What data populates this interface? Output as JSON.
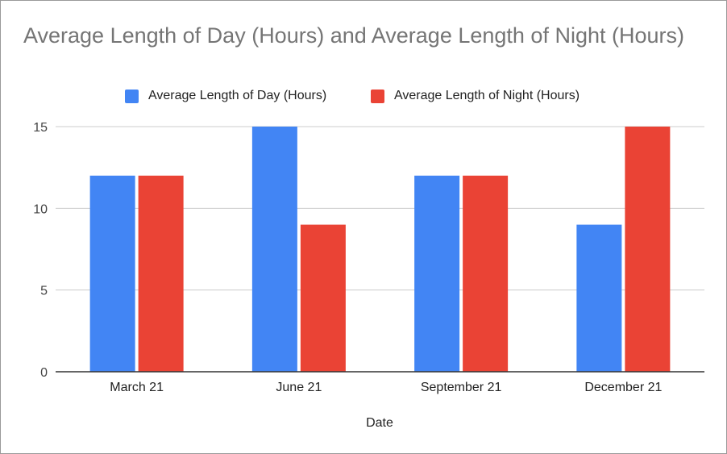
{
  "chart_data": {
    "type": "bar",
    "title": "Average Length of Day (Hours) and Average Length of Night (Hours)",
    "xlabel": "Date",
    "ylabel": "",
    "categories": [
      "March 21",
      "June 21",
      "September 21",
      "December 21"
    ],
    "series": [
      {
        "name": "Average Length of Day (Hours)",
        "values": [
          12,
          15,
          12,
          9
        ],
        "color": "#4285f4"
      },
      {
        "name": "Average Length of Night (Hours)",
        "values": [
          12,
          9,
          12,
          15
        ],
        "color": "#ea4335"
      }
    ],
    "ylim": [
      0,
      15
    ],
    "yticks": [
      "0",
      "5",
      "10",
      "15"
    ],
    "grid": true,
    "legend_position": "top"
  }
}
